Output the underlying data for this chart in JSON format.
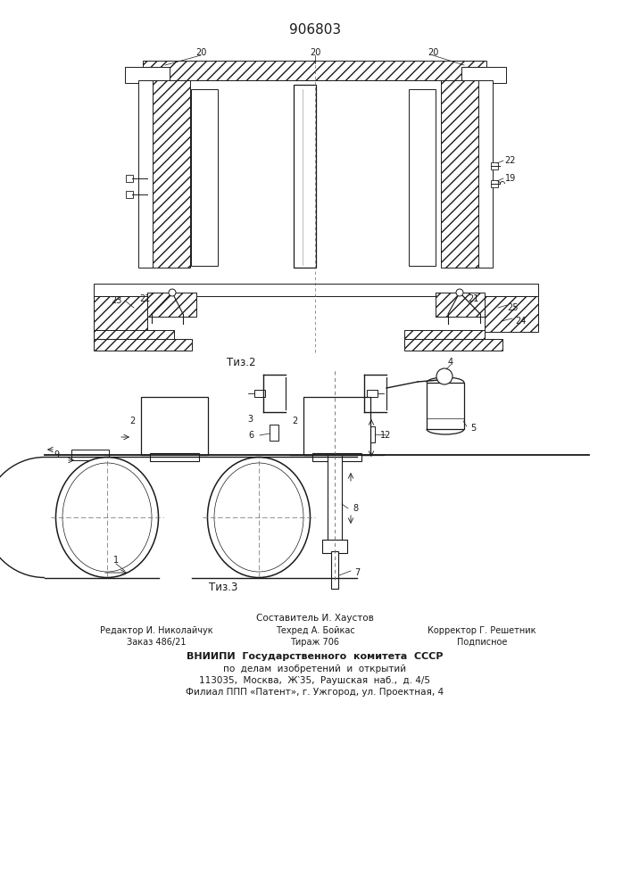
{
  "title": "906803",
  "bg_color": "#ffffff",
  "line_color": "#1a1a1a",
  "fig2_caption": "Τиз.2",
  "fig3_caption": "Τиз.3",
  "footer": {
    "line0": "Составитель И. Хаустов",
    "line1l": "Редактор И. Николайчук",
    "line1m": "Техред А. Бойкас",
    "line1r": "Корректор Г. Решетник",
    "line2l": "Заказ 486/21",
    "line2m": "Тираж 706",
    "line2r": "Подписное",
    "line3": "ВНИИПИ  Государственного  комитета  СССР",
    "line4": "по  делам  изобретений  и  открытий",
    "line5": "113035,  Москва,  Ж‵35,  Раушская  наб.,  д. 4/5",
    "line6": "Филиал ППП «Патент», г. Ужгород, ул. Проектная, 4"
  }
}
